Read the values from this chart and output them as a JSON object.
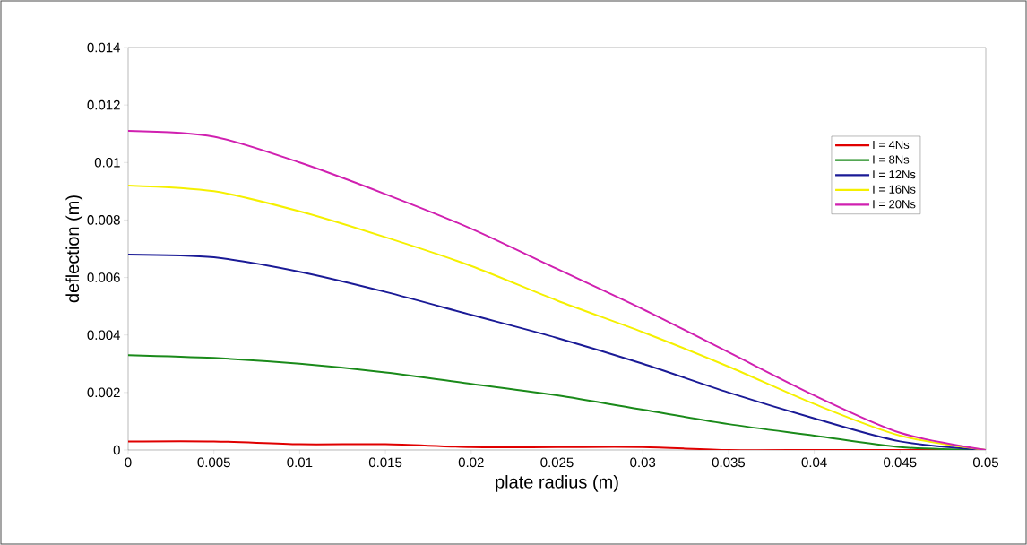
{
  "chart_data": {
    "type": "line",
    "xlabel": "plate radius (m)",
    "ylabel": "deflection (m)",
    "x": [
      0,
      0.005,
      0.01,
      0.015,
      0.02,
      0.025,
      0.03,
      0.035,
      0.04,
      0.045,
      0.05
    ],
    "series": [
      {
        "name": "I = 4Ns",
        "color": "#e00000",
        "values": [
          0.0003,
          0.0003,
          0.0002,
          0.0002,
          0.0001,
          0.0001,
          0.0001,
          0,
          0,
          0,
          0
        ]
      },
      {
        "name": "I = 8Ns",
        "color": "#1a8a1a",
        "values": [
          0.0033,
          0.0032,
          0.003,
          0.0027,
          0.0023,
          0.0019,
          0.0014,
          0.0009,
          0.0005,
          0.0001,
          0
        ]
      },
      {
        "name": "I = 12Ns",
        "color": "#1a1a96",
        "values": [
          0.0068,
          0.0067,
          0.0062,
          0.0055,
          0.0047,
          0.0039,
          0.003,
          0.002,
          0.0011,
          0.0003,
          0
        ]
      },
      {
        "name": "I = 16Ns",
        "color": "#f5f000",
        "values": [
          0.0092,
          0.009,
          0.0083,
          0.0074,
          0.0064,
          0.0052,
          0.0041,
          0.0029,
          0.0016,
          0.0005,
          0
        ]
      },
      {
        "name": "I = 20Ns",
        "color": "#d020b0",
        "values": [
          0.0111,
          0.0109,
          0.01,
          0.0089,
          0.0077,
          0.0063,
          0.0049,
          0.0034,
          0.0019,
          0.0006,
          0
        ]
      }
    ],
    "xlim": [
      0,
      0.05
    ],
    "xticks": [
      0,
      0.005,
      0.01,
      0.015,
      0.02,
      0.025,
      0.03,
      0.035,
      0.04,
      0.045,
      0.05
    ],
    "ylim": [
      0,
      0.014
    ],
    "yticks": [
      0,
      0.002,
      0.004,
      0.006,
      0.008,
      0.01,
      0.012,
      0.014
    ],
    "grid": false,
    "legend": "right",
    "marker": "none",
    "line_style": "solid"
  }
}
